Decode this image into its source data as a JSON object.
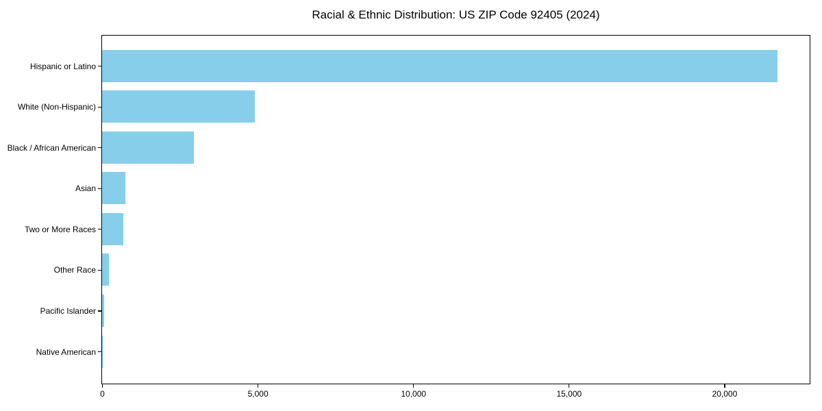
{
  "chart_data": {
    "type": "bar",
    "orientation": "horizontal",
    "title": "Racial & Ethnic Distribution: US ZIP Code 92405 (2024)",
    "categories": [
      "Hispanic or Latino",
      "White (Non-Hispanic)",
      "Black / African American",
      "Asian",
      "Two or More Races",
      "Other Race",
      "Pacific Islander",
      "Native American"
    ],
    "values": [
      21700,
      4900,
      2950,
      750,
      690,
      230,
      75,
      15
    ],
    "xlabel": "",
    "ylabel": "",
    "x_ticks": [
      0,
      5000,
      10000,
      15000,
      20000
    ],
    "x_tick_labels": [
      "0",
      "5,000",
      "10,000",
      "15,000",
      "20,000"
    ],
    "xlim": [
      0,
      22720
    ],
    "grid": false,
    "legend": "none",
    "sort_order": "descending",
    "bar_color": "#87CEEB",
    "axis_color": "#000000",
    "text_color": "#000000",
    "background_color": "#FFFFFF"
  }
}
